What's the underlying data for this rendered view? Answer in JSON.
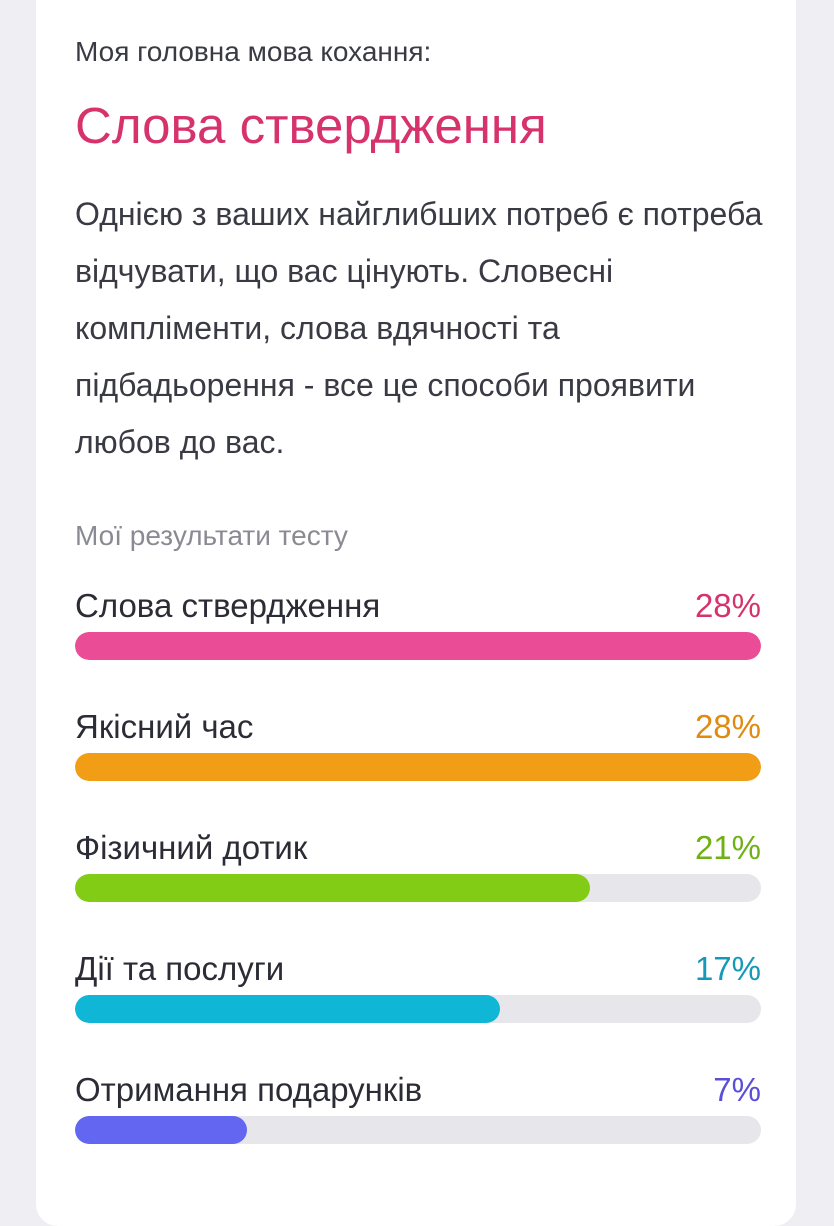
{
  "card": {
    "intro": "Моя головна мова кохання:",
    "title": "Слова ствердження",
    "title_color": "#d6336c",
    "description": "Однією з ваших найглибших потреб є потреба відчувати, що вас цінують. Словесні компліменти, слова вдячності та підбадьорення - все це способи проявити любов до вас."
  },
  "results": {
    "heading": "Мої результати тесту",
    "items": [
      {
        "label": "Слова ствердження",
        "percent_text": "28%",
        "fill_fraction": 1.0,
        "color": "#ea4c95",
        "text_color": "#d6336c"
      },
      {
        "label": "Якісний час",
        "percent_text": "28%",
        "fill_fraction": 1.0,
        "color": "#f29d16",
        "text_color": "#e08a10"
      },
      {
        "label": "Фізичний дотик",
        "percent_text": "21%",
        "fill_fraction": 0.75,
        "color": "#82cc16",
        "text_color": "#6fb016"
      },
      {
        "label": "Дії та послуги",
        "percent_text": "17%",
        "fill_fraction": 0.62,
        "color": "#0fb6d6",
        "text_color": "#1499b8"
      },
      {
        "label": "Отримання подарунків",
        "percent_text": "7%",
        "fill_fraction": 0.25,
        "color": "#6366f1",
        "text_color": "#5a4fd6"
      }
    ]
  }
}
